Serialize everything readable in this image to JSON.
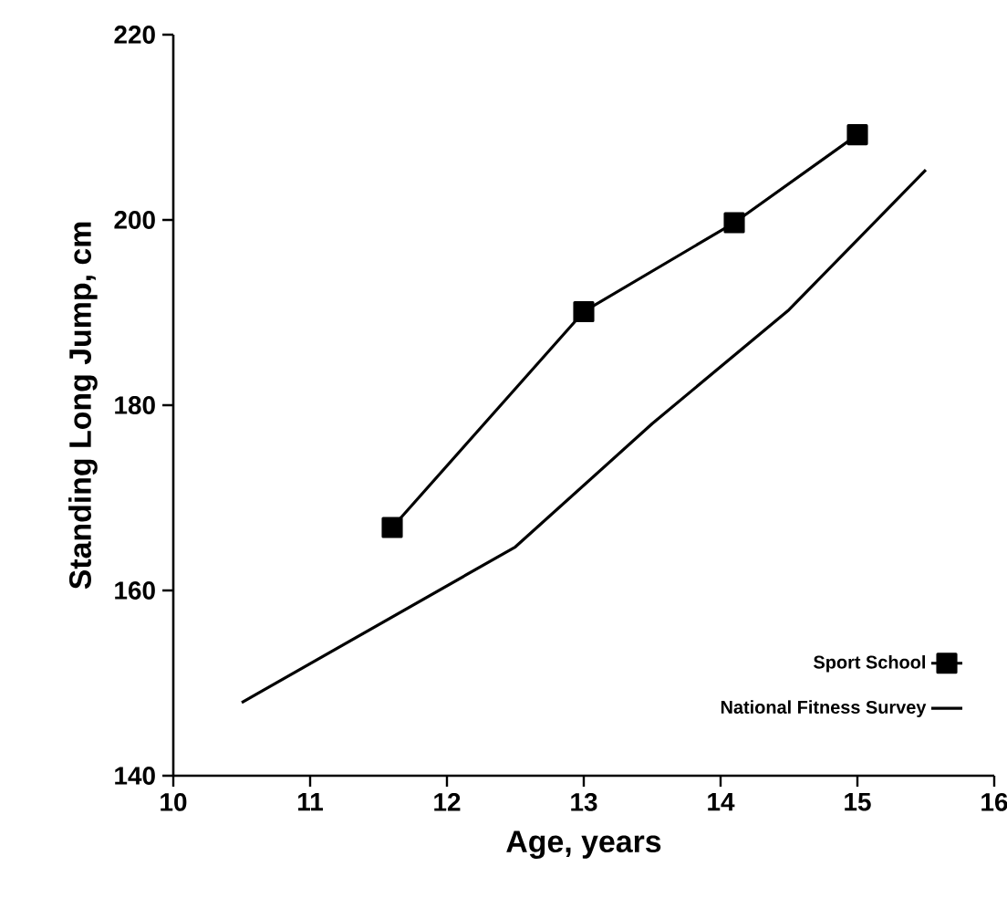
{
  "chart_data": {
    "type": "line",
    "xlabel": "Age, years",
    "ylabel": "Standing Long Jump, cm",
    "xlim": [
      10,
      16
    ],
    "xticks": [
      10,
      11,
      12,
      13,
      14,
      15,
      16
    ],
    "ylim": [
      140,
      220
    ],
    "yticks": [
      140,
      160,
      180,
      200,
      220
    ],
    "grid": false,
    "legend": "bottom right",
    "line_style": "solid",
    "series": [
      {
        "name": "Sport School",
        "color": "#000000",
        "marker": "square",
        "x": [
          11.6,
          13.0,
          14.1,
          15.0
        ],
        "values": [
          166.8,
          190.1,
          199.7,
          209.2
        ]
      },
      {
        "name": "National Fitness Survey",
        "color": "#000000",
        "marker": "none",
        "x": [
          10.5,
          12.5,
          13.5,
          14.5,
          15.5
        ],
        "values": [
          147.9,
          164.7,
          178.0,
          190.3,
          205.4
        ]
      }
    ]
  }
}
